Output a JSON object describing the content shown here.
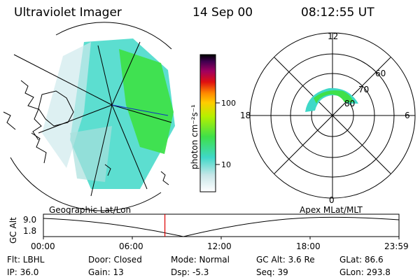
{
  "header": {
    "instrument": "Ultraviolet Imager",
    "date": "14 Sep 00",
    "time": "08:12:55 UT"
  },
  "colorbar": {
    "unit_label": "photon cm⁻²s⁻¹",
    "ticks": [
      "100",
      "10"
    ],
    "scale": "log"
  },
  "geo_panel": {
    "label": "Geographic Lat/Lon"
  },
  "polar_panel": {
    "label": "Apex  MLat/MLT",
    "mlt_labels": {
      "top": "12",
      "right": "6",
      "bottom": "0",
      "left": "18"
    },
    "lat_labels": [
      "60",
      "70",
      "80"
    ]
  },
  "altitude_plot": {
    "ylabel": "GC Alt",
    "ytick_top": "9.0",
    "ytick_bottom": "1.8",
    "xticks": [
      "00:00",
      "06:00",
      "12:00",
      "18:00",
      "23:59"
    ],
    "current_time_hours": 8.2
  },
  "info": {
    "flt": "Flt: LBHL",
    "ip": "IP: 36.0",
    "door": "Door: Closed",
    "gain": "Gain: 13",
    "mode": "Mode: Normal",
    "dsp": "Dsp:    -5.3",
    "gc_alt": "GC Alt: 3.6 Re",
    "seq": "Seq: 39",
    "glat": "GLat:   86.6",
    "glon": "GLon: 293.8"
  },
  "colors": {
    "marker": "#dd0000",
    "aurora_cyan": "#3fd8c8",
    "aurora_green": "#3ee04a"
  }
}
